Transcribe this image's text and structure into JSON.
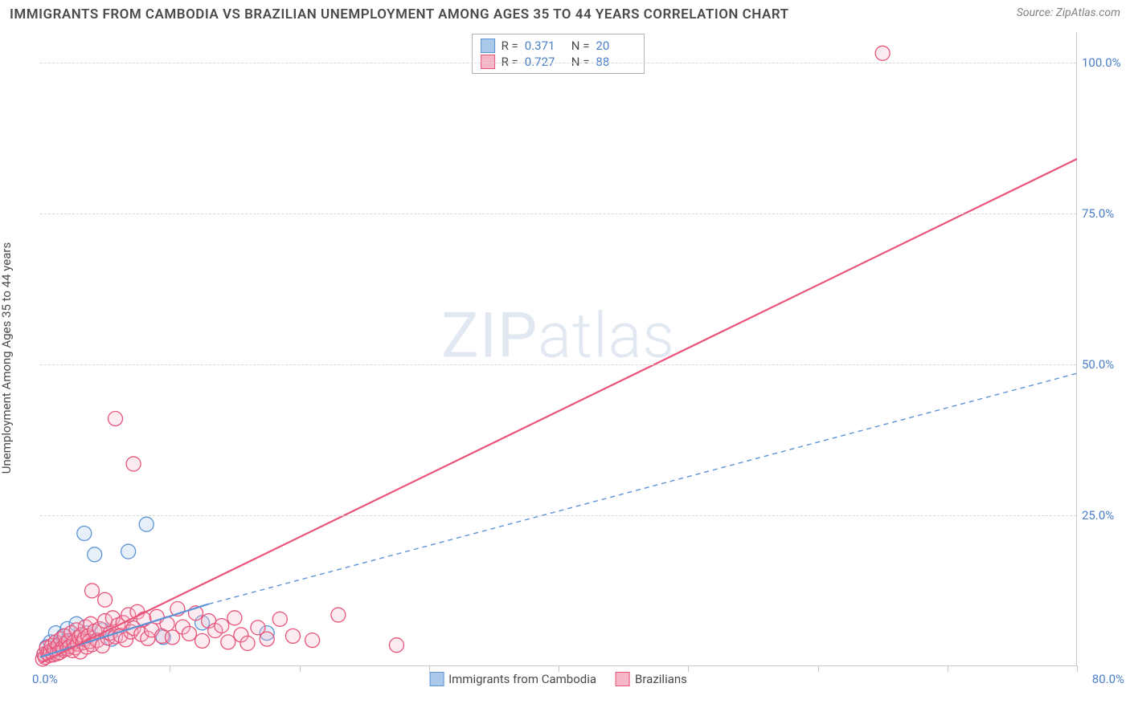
{
  "title": "IMMIGRANTS FROM CAMBODIA VS BRAZILIAN UNEMPLOYMENT AMONG AGES 35 TO 44 YEARS CORRELATION CHART",
  "source_prefix": "Source: ",
  "source_name": "ZipAtlas.com",
  "y_axis_label": "Unemployment Among Ages 35 to 44 years",
  "watermark_a": "ZIP",
  "watermark_b": "atlas",
  "chart": {
    "type": "scatter",
    "xlim": [
      0,
      80
    ],
    "ylim": [
      0,
      105
    ],
    "x_origin_label": "0.0%",
    "x_max_label": "80.0%",
    "x_tick_positions": [
      10,
      20,
      30,
      40,
      50,
      60,
      70,
      80
    ],
    "y_ticks": [
      {
        "v": 25,
        "label": "25.0%"
      },
      {
        "v": 50,
        "label": "50.0%"
      },
      {
        "v": 75,
        "label": "75.0%"
      },
      {
        "v": 100,
        "label": "100.0%"
      }
    ],
    "background_color": "#ffffff",
    "grid_color": "#d8d8d8",
    "axis_color": "#c8c8c8",
    "tick_label_color": "#4a7ec8",
    "marker_radius": 9,
    "marker_stroke_width": 1.3,
    "marker_fill_opacity": 0.28,
    "series": [
      {
        "key": "cambodia",
        "legend_label": "Immigrants from Cambodia",
        "color_stroke": "#5b93d6",
        "color_fill": "#a9c8ea",
        "r_label": "R  =",
        "r_value": "0.371",
        "n_label": "N  =",
        "n_value": "20",
        "trend": {
          "solid": {
            "x1": 0,
            "y1": 1.5,
            "x2": 13,
            "y2": 10.3
          },
          "dashed": {
            "x1": 13,
            "y1": 10.3,
            "x2": 80,
            "y2": 48.5
          },
          "stroke_width_solid": 2.2,
          "stroke_width_dashed": 1.4,
          "dash": "6,5"
        },
        "points": [
          {
            "x": 0.3,
            "y": 2.0
          },
          {
            "x": 0.5,
            "y": 3.2
          },
          {
            "x": 0.8,
            "y": 4.0
          },
          {
            "x": 1.0,
            "y": 2.5
          },
          {
            "x": 1.2,
            "y": 5.5
          },
          {
            "x": 1.5,
            "y": 3.8
          },
          {
            "x": 1.8,
            "y": 5.0
          },
          {
            "x": 2.1,
            "y": 6.2
          },
          {
            "x": 2.4,
            "y": 4.2
          },
          {
            "x": 2.8,
            "y": 7.0
          },
          {
            "x": 3.4,
            "y": 22.0
          },
          {
            "x": 3.6,
            "y": 5.5
          },
          {
            "x": 4.2,
            "y": 18.5
          },
          {
            "x": 4.8,
            "y": 6.0
          },
          {
            "x": 5.5,
            "y": 4.5
          },
          {
            "x": 6.8,
            "y": 19.0
          },
          {
            "x": 8.2,
            "y": 23.5
          },
          {
            "x": 9.5,
            "y": 4.8
          },
          {
            "x": 12.5,
            "y": 7.2
          },
          {
            "x": 17.5,
            "y": 5.5
          }
        ]
      },
      {
        "key": "brazilians",
        "legend_label": "Brazilians",
        "color_stroke": "#e8547a",
        "color_fill": "#f5b6c8",
        "r_label": "R  =",
        "r_value": "0.727",
        "n_label": "N  =",
        "n_value": "88",
        "trend": {
          "solid": {
            "x1": 0,
            "y1": 0.5,
            "x2": 80,
            "y2": 84.0
          },
          "stroke_width_solid": 2.2
        },
        "points": [
          {
            "x": 0.2,
            "y": 1.2
          },
          {
            "x": 0.3,
            "y": 2.0
          },
          {
            "x": 0.4,
            "y": 1.5
          },
          {
            "x": 0.5,
            "y": 3.0
          },
          {
            "x": 0.6,
            "y": 2.2
          },
          {
            "x": 0.7,
            "y": 1.8
          },
          {
            "x": 0.8,
            "y": 2.5
          },
          {
            "x": 0.9,
            "y": 3.4
          },
          {
            "x": 1.0,
            "y": 1.9
          },
          {
            "x": 1.1,
            "y": 2.8
          },
          {
            "x": 1.2,
            "y": 4.0
          },
          {
            "x": 1.3,
            "y": 2.1
          },
          {
            "x": 1.4,
            "y": 3.5
          },
          {
            "x": 1.5,
            "y": 2.3
          },
          {
            "x": 1.6,
            "y": 4.5
          },
          {
            "x": 1.7,
            "y": 3.0
          },
          {
            "x": 1.8,
            "y": 2.7
          },
          {
            "x": 1.9,
            "y": 5.0
          },
          {
            "x": 2.0,
            "y": 3.8
          },
          {
            "x": 2.1,
            "y": 2.9
          },
          {
            "x": 2.2,
            "y": 4.2
          },
          {
            "x": 2.3,
            "y": 3.3
          },
          {
            "x": 2.4,
            "y": 5.5
          },
          {
            "x": 2.5,
            "y": 2.6
          },
          {
            "x": 2.6,
            "y": 4.0
          },
          {
            "x": 2.7,
            "y": 3.1
          },
          {
            "x": 2.8,
            "y": 6.0
          },
          {
            "x": 2.9,
            "y": 3.7
          },
          {
            "x": 3.0,
            "y": 4.8
          },
          {
            "x": 3.1,
            "y": 2.4
          },
          {
            "x": 3.2,
            "y": 5.2
          },
          {
            "x": 3.3,
            "y": 3.9
          },
          {
            "x": 3.4,
            "y": 4.5
          },
          {
            "x": 3.5,
            "y": 6.5
          },
          {
            "x": 3.6,
            "y": 3.2
          },
          {
            "x": 3.7,
            "y": 5.0
          },
          {
            "x": 3.8,
            "y": 4.1
          },
          {
            "x": 3.9,
            "y": 7.0
          },
          {
            "x": 4.0,
            "y": 3.6
          },
          {
            "x": 4.2,
            "y": 5.8
          },
          {
            "x": 4.4,
            "y": 4.3
          },
          {
            "x": 4.6,
            "y": 6.2
          },
          {
            "x": 4.8,
            "y": 3.4
          },
          {
            "x": 5.0,
            "y": 7.5
          },
          {
            "x": 5.2,
            "y": 4.7
          },
          {
            "x": 5.4,
            "y": 5.5
          },
          {
            "x": 5.6,
            "y": 8.0
          },
          {
            "x": 5.8,
            "y": 4.9
          },
          {
            "x": 6.0,
            "y": 6.8
          },
          {
            "x": 6.2,
            "y": 5.1
          },
          {
            "x": 6.4,
            "y": 7.2
          },
          {
            "x": 6.6,
            "y": 4.4
          },
          {
            "x": 6.8,
            "y": 8.5
          },
          {
            "x": 7.0,
            "y": 5.7
          },
          {
            "x": 7.2,
            "y": 6.3
          },
          {
            "x": 7.5,
            "y": 9.0
          },
          {
            "x": 7.8,
            "y": 5.3
          },
          {
            "x": 8.0,
            "y": 7.8
          },
          {
            "x": 8.3,
            "y": 4.6
          },
          {
            "x": 8.6,
            "y": 6.0
          },
          {
            "x": 9.0,
            "y": 8.2
          },
          {
            "x": 9.4,
            "y": 5.0
          },
          {
            "x": 9.8,
            "y": 7.0
          },
          {
            "x": 10.2,
            "y": 4.8
          },
          {
            "x": 10.6,
            "y": 9.5
          },
          {
            "x": 11.0,
            "y": 6.5
          },
          {
            "x": 11.5,
            "y": 5.4
          },
          {
            "x": 12.0,
            "y": 8.8
          },
          {
            "x": 12.5,
            "y": 4.2
          },
          {
            "x": 13.0,
            "y": 7.5
          },
          {
            "x": 13.5,
            "y": 5.9
          },
          {
            "x": 14.0,
            "y": 6.7
          },
          {
            "x": 14.5,
            "y": 4.0
          },
          {
            "x": 15.0,
            "y": 8.0
          },
          {
            "x": 15.5,
            "y": 5.2
          },
          {
            "x": 16.0,
            "y": 3.8
          },
          {
            "x": 16.8,
            "y": 6.4
          },
          {
            "x": 17.5,
            "y": 4.5
          },
          {
            "x": 18.5,
            "y": 7.8
          },
          {
            "x": 19.5,
            "y": 5.0
          },
          {
            "x": 21.0,
            "y": 4.3
          },
          {
            "x": 23.0,
            "y": 8.5
          },
          {
            "x": 27.5,
            "y": 3.5
          },
          {
            "x": 5.8,
            "y": 41.0
          },
          {
            "x": 7.2,
            "y": 33.5
          },
          {
            "x": 4.0,
            "y": 12.5
          },
          {
            "x": 5.0,
            "y": 11.0
          },
          {
            "x": 65.0,
            "y": 101.5
          }
        ]
      }
    ]
  }
}
